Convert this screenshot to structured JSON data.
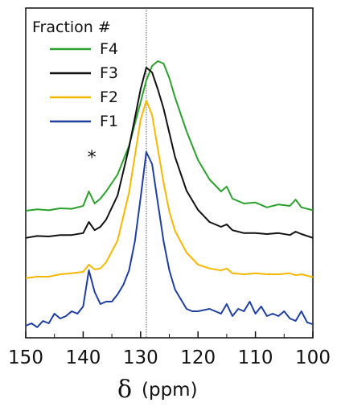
{
  "chart_data": {
    "type": "line",
    "xlabel_symbol": "δ",
    "xlabel_unit": "(ppm)",
    "xlim": [
      150,
      100
    ],
    "x_reversed": true,
    "x_ticks": [
      "150",
      "140",
      "130",
      "120",
      "110",
      "100"
    ],
    "x_tick_values": [
      150,
      140,
      130,
      120,
      110,
      100
    ],
    "reference_line_x": 129,
    "annotation": {
      "text": "*",
      "x": 138.5
    },
    "legend": {
      "title": "Fraction #",
      "placement": "top-left"
    },
    "y_axis_shown": false,
    "series": [
      {
        "name": "F4",
        "color": "#2ca02c",
        "offset": 3,
        "x": [
          150,
          148,
          146,
          144,
          142,
          140,
          139,
          138,
          137,
          136,
          134,
          132,
          130,
          129,
          128,
          127,
          126,
          125,
          124,
          122,
          120,
          118,
          116,
          115,
          114,
          112,
          110,
          108,
          106,
          104,
          103,
          102,
          100
        ],
        "y": [
          0.05,
          0.08,
          0.06,
          0.1,
          0.09,
          0.15,
          0.45,
          0.2,
          0.3,
          0.45,
          0.8,
          1.4,
          2.3,
          2.75,
          3.05,
          3.15,
          3.1,
          2.8,
          2.4,
          1.7,
          1.1,
          0.7,
          0.45,
          0.55,
          0.3,
          0.2,
          0.22,
          0.12,
          0.18,
          0.15,
          0.28,
          0.12,
          0.06
        ]
      },
      {
        "name": "F3",
        "color": "#111111",
        "offset": 2,
        "x": [
          150,
          148,
          146,
          144,
          142,
          140,
          139,
          138,
          137,
          136,
          134,
          132,
          130,
          129,
          128,
          127,
          126,
          125,
          124,
          122,
          120,
          118,
          116,
          115,
          114,
          112,
          110,
          108,
          106,
          104,
          103,
          102,
          100
        ],
        "y": [
          0.02,
          0.06,
          0.05,
          0.08,
          0.08,
          0.12,
          0.35,
          0.18,
          0.25,
          0.4,
          0.9,
          1.9,
          3.1,
          3.55,
          3.45,
          3.1,
          2.7,
          2.2,
          1.7,
          1.0,
          0.6,
          0.35,
          0.25,
          0.3,
          0.18,
          0.12,
          0.12,
          0.1,
          0.12,
          0.08,
          0.15,
          0.1,
          0.02
        ]
      },
      {
        "name": "F2",
        "color": "#f5b800",
        "offset": 1,
        "x": [
          150,
          148,
          146,
          144,
          142,
          140,
          139,
          138,
          137,
          136,
          134,
          132,
          130,
          129,
          128,
          127,
          126,
          125,
          124,
          122,
          120,
          118,
          116,
          115,
          114,
          112,
          110,
          108,
          106,
          104,
          103,
          102,
          100
        ],
        "y": [
          0.02,
          0.05,
          0.05,
          0.1,
          0.12,
          0.15,
          0.3,
          0.2,
          0.22,
          0.35,
          0.8,
          1.8,
          3.3,
          3.7,
          3.4,
          2.7,
          2.0,
          1.4,
          1.0,
          0.55,
          0.3,
          0.22,
          0.18,
          0.22,
          0.12,
          0.1,
          0.12,
          0.1,
          0.1,
          0.12,
          0.08,
          0.1,
          0.04
        ]
      },
      {
        "name": "F1",
        "color": "#1f3fa0",
        "offset": 0,
        "x": [
          150,
          149,
          148,
          147,
          146,
          145,
          144,
          143,
          142,
          141,
          140,
          139,
          138,
          137,
          136,
          135,
          134,
          133,
          132,
          131,
          130,
          129,
          128,
          127,
          126,
          125,
          124,
          123,
          122,
          121,
          120,
          118,
          116,
          115,
          114,
          113,
          112,
          111,
          110,
          109,
          108,
          107,
          106,
          105,
          104,
          103,
          102,
          101,
          100
        ],
        "y": [
          0.05,
          0.1,
          0.02,
          0.15,
          0.1,
          0.3,
          0.2,
          0.25,
          0.35,
          0.3,
          0.45,
          1.2,
          0.75,
          0.5,
          0.55,
          0.55,
          0.7,
          0.9,
          1.2,
          1.8,
          2.7,
          3.65,
          3.4,
          2.6,
          1.8,
          1.2,
          0.8,
          0.6,
          0.4,
          0.35,
          0.35,
          0.4,
          0.3,
          0.5,
          0.25,
          0.4,
          0.35,
          0.55,
          0.3,
          0.45,
          0.25,
          0.3,
          0.25,
          0.35,
          0.2,
          0.15,
          0.35,
          0.12,
          0.08
        ]
      }
    ]
  }
}
